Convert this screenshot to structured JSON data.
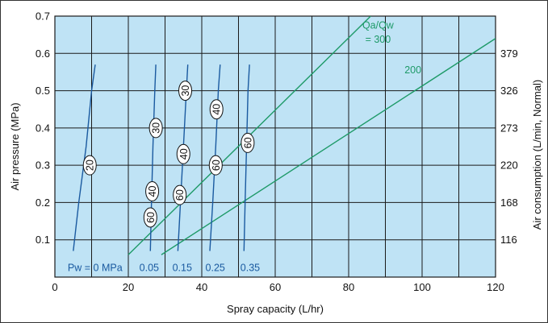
{
  "chart_data": {
    "type": "line",
    "title": "",
    "xlabel": "Spray capacity (L/hr)",
    "ylabel": "Air pressure (MPa)",
    "y2label": "Air consumption (L/min, Normal)",
    "xlim": [
      0,
      120
    ],
    "ylim": [
      0,
      0.7
    ],
    "x_ticks": [
      "0",
      "20",
      "40",
      "60",
      "80",
      "100",
      "120"
    ],
    "y_ticks": [
      "0.1",
      "0.2",
      "0.3",
      "0.4",
      "0.5",
      "0.6",
      "0.7"
    ],
    "y2_ticks": [
      {
        "label": "116",
        "at": 0.1
      },
      {
        "label": "168",
        "at": 0.2
      },
      {
        "label": "220",
        "at": 0.3
      },
      {
        "label": "273",
        "at": 0.4
      },
      {
        "label": "326",
        "at": 0.5
      },
      {
        "label": "379",
        "at": 0.6
      }
    ],
    "grid": true,
    "colors": {
      "plot_bg": "#bfe3f5",
      "grid": "#1a1a1a",
      "water_pressure": "#1a5aa0",
      "ratio": "#1e9a68",
      "oval_fill": "#ffffff"
    },
    "water_pressure_series": [
      {
        "name": "Pw = 0 MPa",
        "x": [
          5,
          6.5,
          8.5,
          10,
          11
        ],
        "y": [
          0.07,
          0.2,
          0.35,
          0.5,
          0.57
        ]
      },
      {
        "name": "0.05",
        "x": [
          26,
          26.3,
          26.7,
          27.2,
          27.5
        ],
        "y": [
          0.07,
          0.2,
          0.35,
          0.5,
          0.57
        ]
      },
      {
        "name": "0.15",
        "x": [
          33.5,
          34.2,
          35,
          35.8,
          36.2
        ],
        "y": [
          0.07,
          0.2,
          0.35,
          0.5,
          0.57
        ]
      },
      {
        "name": "0.25",
        "x": [
          42.2,
          43,
          43.8,
          44.5,
          45
        ],
        "y": [
          0.07,
          0.2,
          0.35,
          0.5,
          0.57
        ]
      },
      {
        "name": "0.35",
        "x": [
          51.5,
          51.8,
          52.2,
          52.6,
          53
        ],
        "y": [
          0.07,
          0.2,
          0.35,
          0.5,
          0.57
        ]
      }
    ],
    "ratio_series": [
      {
        "name": "Qa/Qw = 300",
        "x": [
          20,
          86
        ],
        "y": [
          0.06,
          0.7
        ]
      },
      {
        "name": "200",
        "x": [
          29,
          120
        ],
        "y": [
          0.06,
          0.64
        ]
      }
    ],
    "ratio_labels": [
      {
        "text": "Qa/Qw",
        "x": 88,
        "y": 0.675
      },
      {
        "text": "= 300",
        "x": 88,
        "y": 0.637
      },
      {
        "text": "200",
        "x": 97.5,
        "y": 0.555
      }
    ],
    "pressure_labels": [
      {
        "text": "Pw = 0 MPa",
        "x": 3.5,
        "y": 0.025
      },
      {
        "text": "0.05",
        "x": 23,
        "y": 0.025
      },
      {
        "text": "0.15",
        "x": 32,
        "y": 0.025
      },
      {
        "text": "0.25",
        "x": 41,
        "y": 0.025
      },
      {
        "text": "0.35",
        "x": 50.5,
        "y": 0.025
      }
    ],
    "air_consumption_markers": [
      {
        "label": "20",
        "x": 9.5,
        "y": 0.3
      },
      {
        "label": "30",
        "x": 27.5,
        "y": 0.4
      },
      {
        "label": "40",
        "x": 26.5,
        "y": 0.23
      },
      {
        "label": "60",
        "x": 26,
        "y": 0.16
      },
      {
        "label": "30",
        "x": 35.5,
        "y": 0.5
      },
      {
        "label": "40",
        "x": 35,
        "y": 0.33
      },
      {
        "label": "60",
        "x": 34,
        "y": 0.22
      },
      {
        "label": "40",
        "x": 44,
        "y": 0.45
      },
      {
        "label": "60",
        "x": 43.8,
        "y": 0.3
      },
      {
        "label": "60",
        "x": 52.5,
        "y": 0.36
      }
    ]
  }
}
